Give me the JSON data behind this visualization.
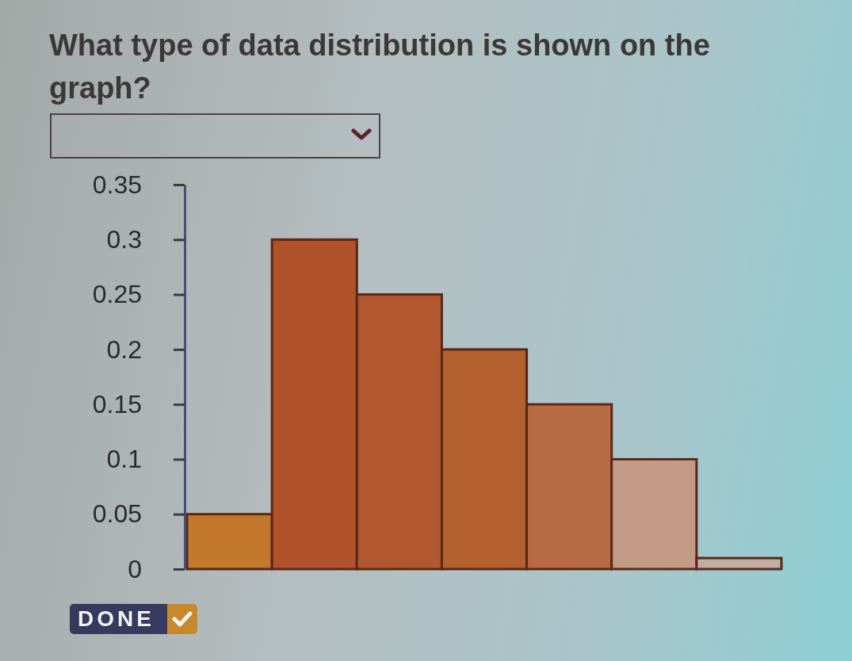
{
  "chart_data": {
    "type": "bar",
    "title": "What type of data distribution is shown on the graph?",
    "categories": [
      null,
      null,
      null,
      null,
      null,
      null,
      null
    ],
    "values": [
      0.05,
      0.3,
      0.25,
      0.2,
      0.15,
      0.1,
      0.01
    ],
    "colors": [
      "#c4782c",
      "#b0522c",
      "#b2582e",
      "#b4602f",
      "#b86a45",
      "#c29a86",
      "#c0aea4"
    ],
    "ylim": [
      0,
      0.35
    ],
    "yticks": [
      0,
      0.05,
      0.1,
      0.15,
      0.2,
      0.25,
      0.3,
      0.35
    ],
    "annotations": [
      "DONE"
    ]
  }
}
